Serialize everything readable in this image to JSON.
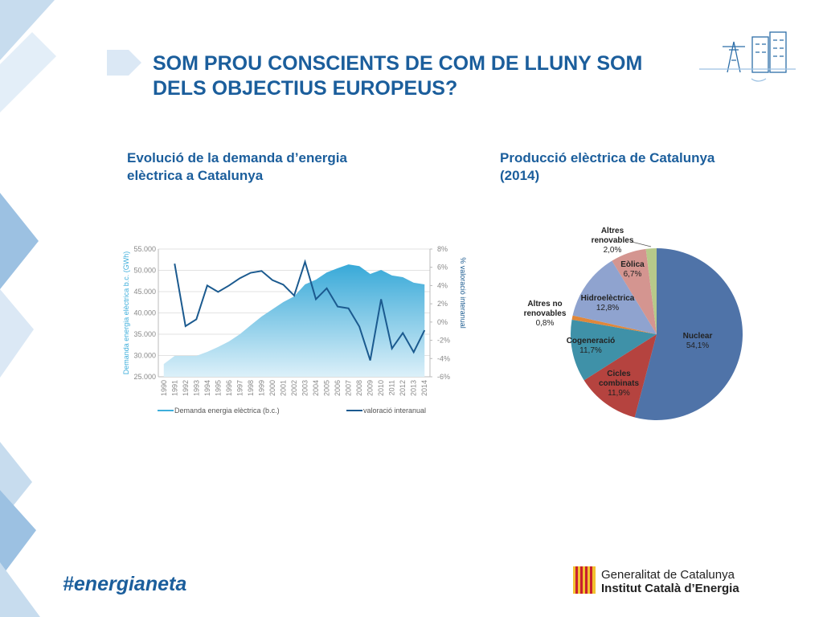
{
  "slide": {
    "title": "SOM PROU CONSCIENTS DE COM DE LLUNY SOM\nDELS OBJECTIUS EUROPEUS?",
    "hashtag": "#energianeta",
    "org_line1": "Generalitat de Catalunya",
    "org_line2": "Institut Català d’Energia"
  },
  "chart_data": [
    {
      "type": "area",
      "title": "Evolució de la demanda d’energia\nelèctrica a Catalunya",
      "y_label": "Demanda energia elèctrica b.c. (GWh)",
      "y2_label": "% valoració interanual",
      "categories": [
        "1990",
        "1991",
        "1992",
        "1993",
        "1994",
        "1995",
        "1996",
        "1997",
        "1998",
        "1999",
        "2000",
        "2001",
        "2002",
        "2003",
        "2004",
        "2005",
        "2006",
        "2007",
        "2008",
        "2009",
        "2010",
        "2011",
        "2012",
        "2013",
        "2014"
      ],
      "series": [
        {
          "name": "Demanda energia elèctrica (b.c.)",
          "type": "area",
          "color": "#3eaedb",
          "values": [
            28000,
            29900,
            29900,
            29900,
            30850,
            32000,
            33300,
            35000,
            37100,
            39150,
            40850,
            42550,
            43900,
            46700,
            47800,
            49500,
            50500,
            51400,
            51000,
            49150,
            50100,
            48800,
            48400,
            47100,
            46700
          ]
        },
        {
          "name": "valoració interanual",
          "type": "line",
          "axis": "y2",
          "color": "#1b5a8f",
          "values": [
            null,
            6.4,
            -0.45,
            0.3,
            4.0,
            3.3,
            4.0,
            4.8,
            5.4,
            5.6,
            4.6,
            4.1,
            2.9,
            6.6,
            2.5,
            3.7,
            1.7,
            1.5,
            -0.5,
            -4.2,
            2.5,
            -2.9,
            -1.2,
            -3.3,
            -0.9
          ]
        }
      ],
      "ylim": [
        25000,
        55000
      ],
      "yticks": [
        {
          "value": 25000,
          "label": "25.000"
        },
        {
          "value": 30000,
          "label": "30.000"
        },
        {
          "value": 35000,
          "label": "35.000"
        },
        {
          "value": 40000,
          "label": "40.000"
        },
        {
          "value": 45000,
          "label": "45.000"
        },
        {
          "value": 50000,
          "label": "50.000"
        },
        {
          "value": 55000,
          "label": "55.000"
        }
      ],
      "y2lim": [
        -6,
        8
      ],
      "y2ticks": [
        {
          "value": -6,
          "label": "-6%"
        },
        {
          "value": -4,
          "label": "-4%"
        },
        {
          "value": -2,
          "label": "-2%"
        },
        {
          "value": 0,
          "label": "0%"
        },
        {
          "value": 2,
          "label": "2%"
        },
        {
          "value": 4,
          "label": "4%"
        },
        {
          "value": 6,
          "label": "6%"
        },
        {
          "value": 8,
          "label": "8%"
        }
      ],
      "grid": true,
      "legend": "bottom"
    },
    {
      "type": "pie",
      "title": "Producció elèctrica de Catalunya\n(2014)",
      "categories": [
        "Nuclear",
        "Cicles\ncombinats",
        "Cogeneració",
        "Altres no\nrenovables",
        "Hidroelèctrica",
        "Eòlica",
        "Altres\nrenovables"
      ],
      "values": [
        54.1,
        11.9,
        11.7,
        0.8,
        12.8,
        6.7,
        2.0
      ],
      "value_labels": [
        "54,1%",
        "11,9%",
        "11,7%",
        "0,8%",
        "12,8%",
        "6,7%",
        "2,0%"
      ],
      "colors": [
        "#4f73a8",
        "#b5433f",
        "#3f91a8",
        "#e0873a",
        "#8fa3cf",
        "#d49590",
        "#b7c98a"
      ]
    }
  ]
}
